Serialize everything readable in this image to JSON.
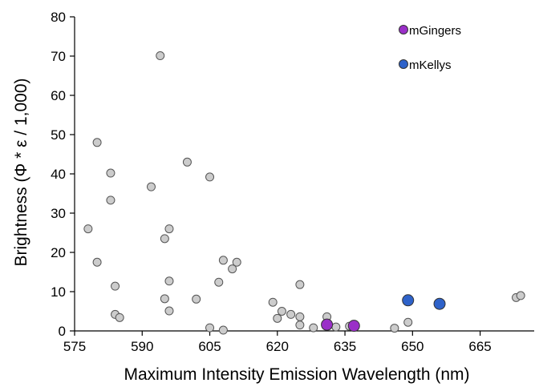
{
  "chart_data": {
    "type": "scatter",
    "title": "",
    "xlabel": "Maximum Intensity Emission Wavelength (nm)",
    "ylabel": "Brightness (Φ * ε / 1,000)",
    "xlim": [
      575,
      677
    ],
    "ylim": [
      0,
      80
    ],
    "xticks": [
      575,
      590,
      605,
      620,
      635,
      650,
      665
    ],
    "yticks": [
      0,
      10,
      20,
      30,
      40,
      50,
      60,
      70,
      80
    ],
    "grid": false,
    "legend_position": "top-right",
    "series": [
      {
        "color": "#cccccc",
        "stroke": "#555555",
        "marker_size": "small",
        "points": [
          [
            578,
            26
          ],
          [
            580,
            48
          ],
          [
            580,
            17.5
          ],
          [
            583,
            40.2
          ],
          [
            583,
            33.3
          ],
          [
            584,
            11.4
          ],
          [
            584,
            4.2
          ],
          [
            585,
            3.4
          ],
          [
            592,
            36.7
          ],
          [
            594,
            70.1
          ],
          [
            595,
            23.5
          ],
          [
            595,
            8.2
          ],
          [
            596,
            26
          ],
          [
            596,
            12.7
          ],
          [
            596,
            5.1
          ],
          [
            600,
            43
          ],
          [
            602,
            8.1
          ],
          [
            605,
            39.2
          ],
          [
            605,
            0.8
          ],
          [
            607,
            12.4
          ],
          [
            608,
            18
          ],
          [
            608,
            0.2
          ],
          [
            610,
            15.8
          ],
          [
            611,
            17.5
          ],
          [
            619,
            7.3
          ],
          [
            620,
            3.2
          ],
          [
            621,
            5
          ],
          [
            623,
            4.2
          ],
          [
            625,
            11.8
          ],
          [
            625,
            3.6
          ],
          [
            625,
            1.5
          ],
          [
            628,
            0.8
          ],
          [
            631,
            3.6
          ],
          [
            633,
            1
          ],
          [
            636,
            1.2
          ],
          [
            646,
            0.7
          ],
          [
            649,
            2.2
          ],
          [
            673,
            8.5
          ],
          [
            674,
            9
          ]
        ]
      },
      {
        "name": "mGingers",
        "color": "#9a2fc8",
        "stroke": "#333333",
        "marker_size": "large",
        "points": [
          [
            631,
            1.6
          ],
          [
            637,
            1.3
          ]
        ]
      },
      {
        "name": "mKellys",
        "color": "#2e62c9",
        "stroke": "#333333",
        "marker_size": "large",
        "points": [
          [
            649,
            7.8
          ],
          [
            656,
            6.9
          ]
        ]
      }
    ]
  }
}
